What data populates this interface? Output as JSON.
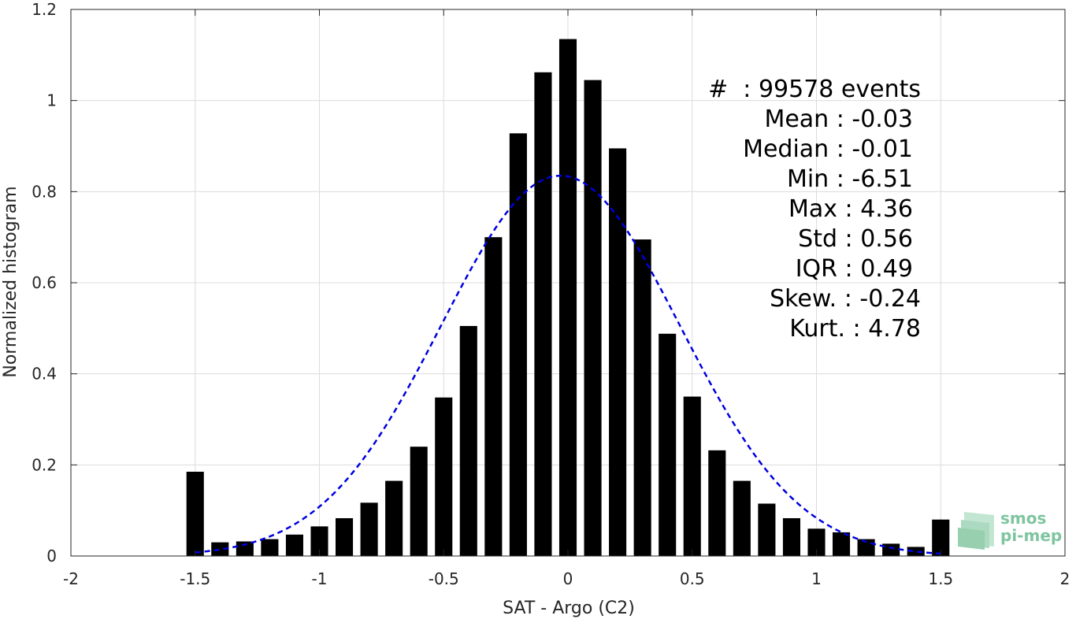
{
  "chart_data": {
    "type": "bar",
    "xlabel": "SAT - Argo (C2)",
    "ylabel": "Normalized histogram",
    "xlim": [
      -2,
      2
    ],
    "ylim": [
      0,
      1.2
    ],
    "xticks": [
      -2,
      -1.5,
      -1,
      -0.5,
      0,
      0.5,
      1,
      1.5,
      2
    ],
    "xtick_labels": [
      "-2",
      "-1.5",
      "-1",
      "-0.5",
      "0",
      "0.5",
      "1",
      "1.5",
      "2"
    ],
    "yticks": [
      0,
      0.2,
      0.4,
      0.6,
      0.8,
      1,
      1.2
    ],
    "ytick_labels": [
      "0",
      "0.2",
      "0.4",
      "0.6",
      "0.8",
      "1",
      "1.2"
    ],
    "grid": true,
    "bar_color": "#000000",
    "bar_width": 0.07,
    "bins": {
      "x": [
        -1.5,
        -1.4,
        -1.3,
        -1.2,
        -1.1,
        -1.0,
        -0.9,
        -0.8,
        -0.7,
        -0.6,
        -0.5,
        -0.4,
        -0.3,
        -0.2,
        -0.1,
        0.0,
        0.1,
        0.2,
        0.3,
        0.4,
        0.5,
        0.6,
        0.7,
        0.8,
        0.9,
        1.0,
        1.1,
        1.2,
        1.3,
        1.4,
        1.5
      ],
      "values": [
        0.185,
        0.03,
        0.032,
        0.037,
        0.047,
        0.065,
        0.083,
        0.117,
        0.165,
        0.24,
        0.348,
        0.505,
        0.7,
        0.928,
        1.062,
        1.135,
        1.045,
        0.895,
        0.695,
        0.488,
        0.35,
        0.232,
        0.165,
        0.115,
        0.083,
        0.06,
        0.052,
        0.037,
        0.027,
        0.02,
        0.08
      ]
    },
    "fit_curve": {
      "style": "dashed",
      "color": "#0000e0",
      "mean": -0.03,
      "std": 0.48,
      "peak": 0.835,
      "x_range": [
        -1.5,
        1.5
      ]
    },
    "stats": {
      "events": "#  : 99578 events",
      "mean": "Mean : -0.03",
      "median": "Median : -0.01",
      "min": "Min : -6.51",
      "max": "Max : 4.36",
      "std": "Std : 0.56",
      "iqr": "IQR : 0.49",
      "skew": "Skew. : -0.24",
      "kurt": "Kurt. : 4.78"
    }
  },
  "logo": {
    "line1": "smos",
    "line2": "pi-mep",
    "color": "#7fc4a0"
  }
}
